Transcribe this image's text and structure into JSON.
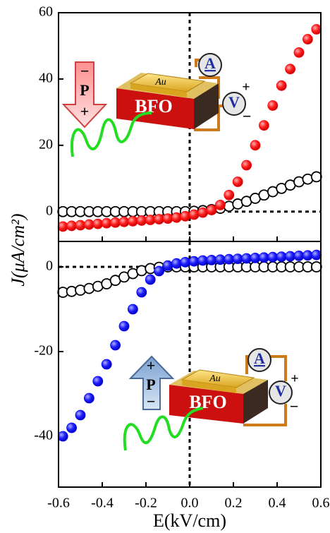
{
  "chart_data": [
    {
      "type": "scatter",
      "ylabel": "J(μA/cm²)",
      "x": [
        -0.58,
        -0.54,
        -0.5,
        -0.46,
        -0.42,
        -0.38,
        -0.34,
        -0.3,
        -0.26,
        -0.22,
        -0.18,
        -0.14,
        -0.1,
        -0.06,
        -0.02,
        0.02,
        0.06,
        0.1,
        0.14,
        0.18,
        0.22,
        0.26,
        0.3,
        0.34,
        0.38,
        0.42,
        0.46,
        0.5,
        0.54,
        0.58
      ],
      "series": [
        {
          "color": "#000000",
          "values": [
            0,
            0,
            0,
            0,
            0,
            0,
            0,
            0,
            0,
            0,
            0,
            0,
            0,
            0,
            0,
            0.1,
            0.3,
            0.6,
            1,
            1.6,
            2.3,
            3.1,
            4,
            5,
            6,
            7,
            8,
            9,
            9.8,
            10.5
          ]
        },
        {
          "color": "#ff0000",
          "values": [
            -4.5,
            -4.3,
            -4.1,
            -3.9,
            -3.7,
            -3.5,
            -3.3,
            -3.1,
            -2.9,
            -2.7,
            -2.5,
            -2.3,
            -2.1,
            -1.8,
            -1.4,
            -0.9,
            -0.3,
            0.5,
            2,
            5,
            9,
            14,
            20,
            26,
            32,
            38,
            43,
            48,
            52,
            55
          ]
        }
      ],
      "xlim": [
        -0.6,
        0.6
      ],
      "xticks": [
        -0.6,
        -0.4,
        -0.2,
        {
          "value": 0,
          "label": "0.0"
        },
        0.2,
        0.4,
        0.6
      ],
      "ylim": [
        -9,
        60
      ],
      "yticks": [
        0,
        20,
        40,
        60
      ],
      "inset_labels": [
        "Au",
        "BFO",
        "A",
        "V",
        "P",
        "−",
        "+",
        "+",
        "−"
      ]
    },
    {
      "type": "scatter",
      "xlabel": "E(kV/cm)",
      "x": [
        -0.58,
        -0.54,
        -0.5,
        -0.46,
        -0.42,
        -0.38,
        -0.34,
        -0.3,
        -0.26,
        -0.22,
        -0.18,
        -0.14,
        -0.1,
        -0.06,
        -0.02,
        0.02,
        0.06,
        0.1,
        0.14,
        0.18,
        0.22,
        0.26,
        0.3,
        0.34,
        0.38,
        0.42,
        0.46,
        0.5,
        0.54,
        0.58
      ],
      "series": [
        {
          "color": "#000000",
          "values": [
            -6,
            -5.8,
            -5.5,
            -5.1,
            -4.6,
            -4,
            -3.2,
            -2.4,
            -1.6,
            -0.9,
            -0.4,
            -0.1,
            0,
            0,
            0,
            0,
            0,
            0,
            0,
            0,
            0,
            0,
            0,
            0,
            0,
            0,
            0,
            0,
            0,
            0
          ]
        },
        {
          "color": "#0000ff",
          "values": [
            -40,
            -38,
            -35,
            -31,
            -27,
            -23,
            -18.5,
            -14,
            -10,
            -6,
            -3,
            -1,
            0.3,
            0.8,
            1.1,
            1.3,
            1.5,
            1.6,
            1.7,
            1.8,
            1.9,
            2,
            2.1,
            2.2,
            2.3,
            2.4,
            2.5,
            2.6,
            2.7,
            2.8
          ]
        }
      ],
      "xlim": [
        -0.6,
        0.6
      ],
      "xticks": [
        -0.6,
        -0.4,
        -0.2,
        {
          "value": 0,
          "label": "0.0"
        },
        0.2,
        0.4,
        0.6
      ],
      "ylim": [
        -52,
        6
      ],
      "yticks": [
        -40,
        -20,
        0
      ],
      "inset_labels": [
        "Au",
        "BFO",
        "A",
        "V",
        "P",
        "+",
        "−",
        "+",
        "−"
      ]
    }
  ]
}
